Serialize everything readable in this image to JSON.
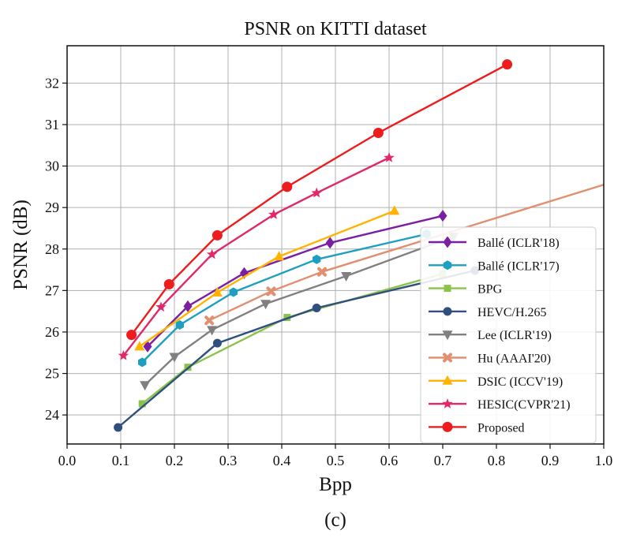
{
  "chart_data": {
    "type": "line",
    "title": "PSNR on KITTI dataset",
    "xlabel": "Bpp",
    "ylabel": "PSNR (dB)",
    "caption": "(c)",
    "xlim": [
      0.0,
      1.0
    ],
    "ylim": [
      23.3,
      32.9
    ],
    "xticks": [
      "0.0",
      "0.1",
      "0.2",
      "0.3",
      "0.4",
      "0.5",
      "0.6",
      "0.7",
      "0.8",
      "0.9",
      "1.0"
    ],
    "yticks": [
      "24",
      "25",
      "26",
      "27",
      "28",
      "29",
      "30",
      "31",
      "32"
    ],
    "grid": true,
    "legend_position": "lower-right",
    "series": [
      {
        "name": "Ballé (ICLR'18)",
        "color": "#7b1fa2",
        "marker": "diamond",
        "x": [
          0.15,
          0.225,
          0.33,
          0.49,
          0.7
        ],
        "y": [
          25.65,
          26.62,
          27.42,
          28.15,
          28.8
        ]
      },
      {
        "name": "Ballé (ICLR'17)",
        "color": "#1f9fbf",
        "marker": "hexagon",
        "x": [
          0.14,
          0.21,
          0.31,
          0.465,
          0.67
        ],
        "y": [
          25.27,
          26.17,
          26.96,
          27.75,
          28.36
        ]
      },
      {
        "name": "BPG",
        "color": "#8bc34a",
        "marker": "square",
        "x": [
          0.14,
          0.225,
          0.41,
          0.7
        ],
        "y": [
          24.27,
          25.15,
          26.35,
          27.4
        ]
      },
      {
        "name": "HEVC/H.265",
        "color": "#2f4f7f",
        "marker": "circle",
        "x": [
          0.095,
          0.28,
          0.465,
          0.76
        ],
        "y": [
          23.7,
          25.73,
          26.58,
          27.48
        ]
      },
      {
        "name": "Lee (ICLR'19)",
        "color": "#808080",
        "marker": "triangle-down",
        "x": [
          0.145,
          0.2,
          0.27,
          0.37,
          0.52,
          0.72
        ],
        "y": [
          24.72,
          25.4,
          26.05,
          26.68,
          27.35,
          28.3
        ]
      },
      {
        "name": "Hu (AAAI'20)",
        "color": "#e08f70",
        "marker": "cross",
        "x": [
          0.265,
          0.38,
          0.475,
          1.0
        ],
        "y": [
          26.28,
          26.98,
          27.45,
          29.55
        ]
      },
      {
        "name": "DSIC (ICCV'19)",
        "color": "#ffb300",
        "marker": "triangle-up",
        "x": [
          0.135,
          0.28,
          0.395,
          0.61
        ],
        "y": [
          25.65,
          26.95,
          27.82,
          28.92
        ]
      },
      {
        "name": "HESIC(CVPR'21)",
        "color": "#e0286b",
        "marker": "star",
        "x": [
          0.105,
          0.175,
          0.27,
          0.385,
          0.465,
          0.6
        ],
        "y": [
          25.43,
          26.6,
          27.87,
          28.83,
          29.35,
          30.2
        ]
      },
      {
        "name": "Proposed",
        "color": "#ee1c1c",
        "marker": "circle-large",
        "x": [
          0.12,
          0.19,
          0.28,
          0.41,
          0.58,
          0.82
        ],
        "y": [
          25.93,
          27.15,
          28.33,
          29.5,
          30.8,
          32.45
        ]
      }
    ]
  }
}
